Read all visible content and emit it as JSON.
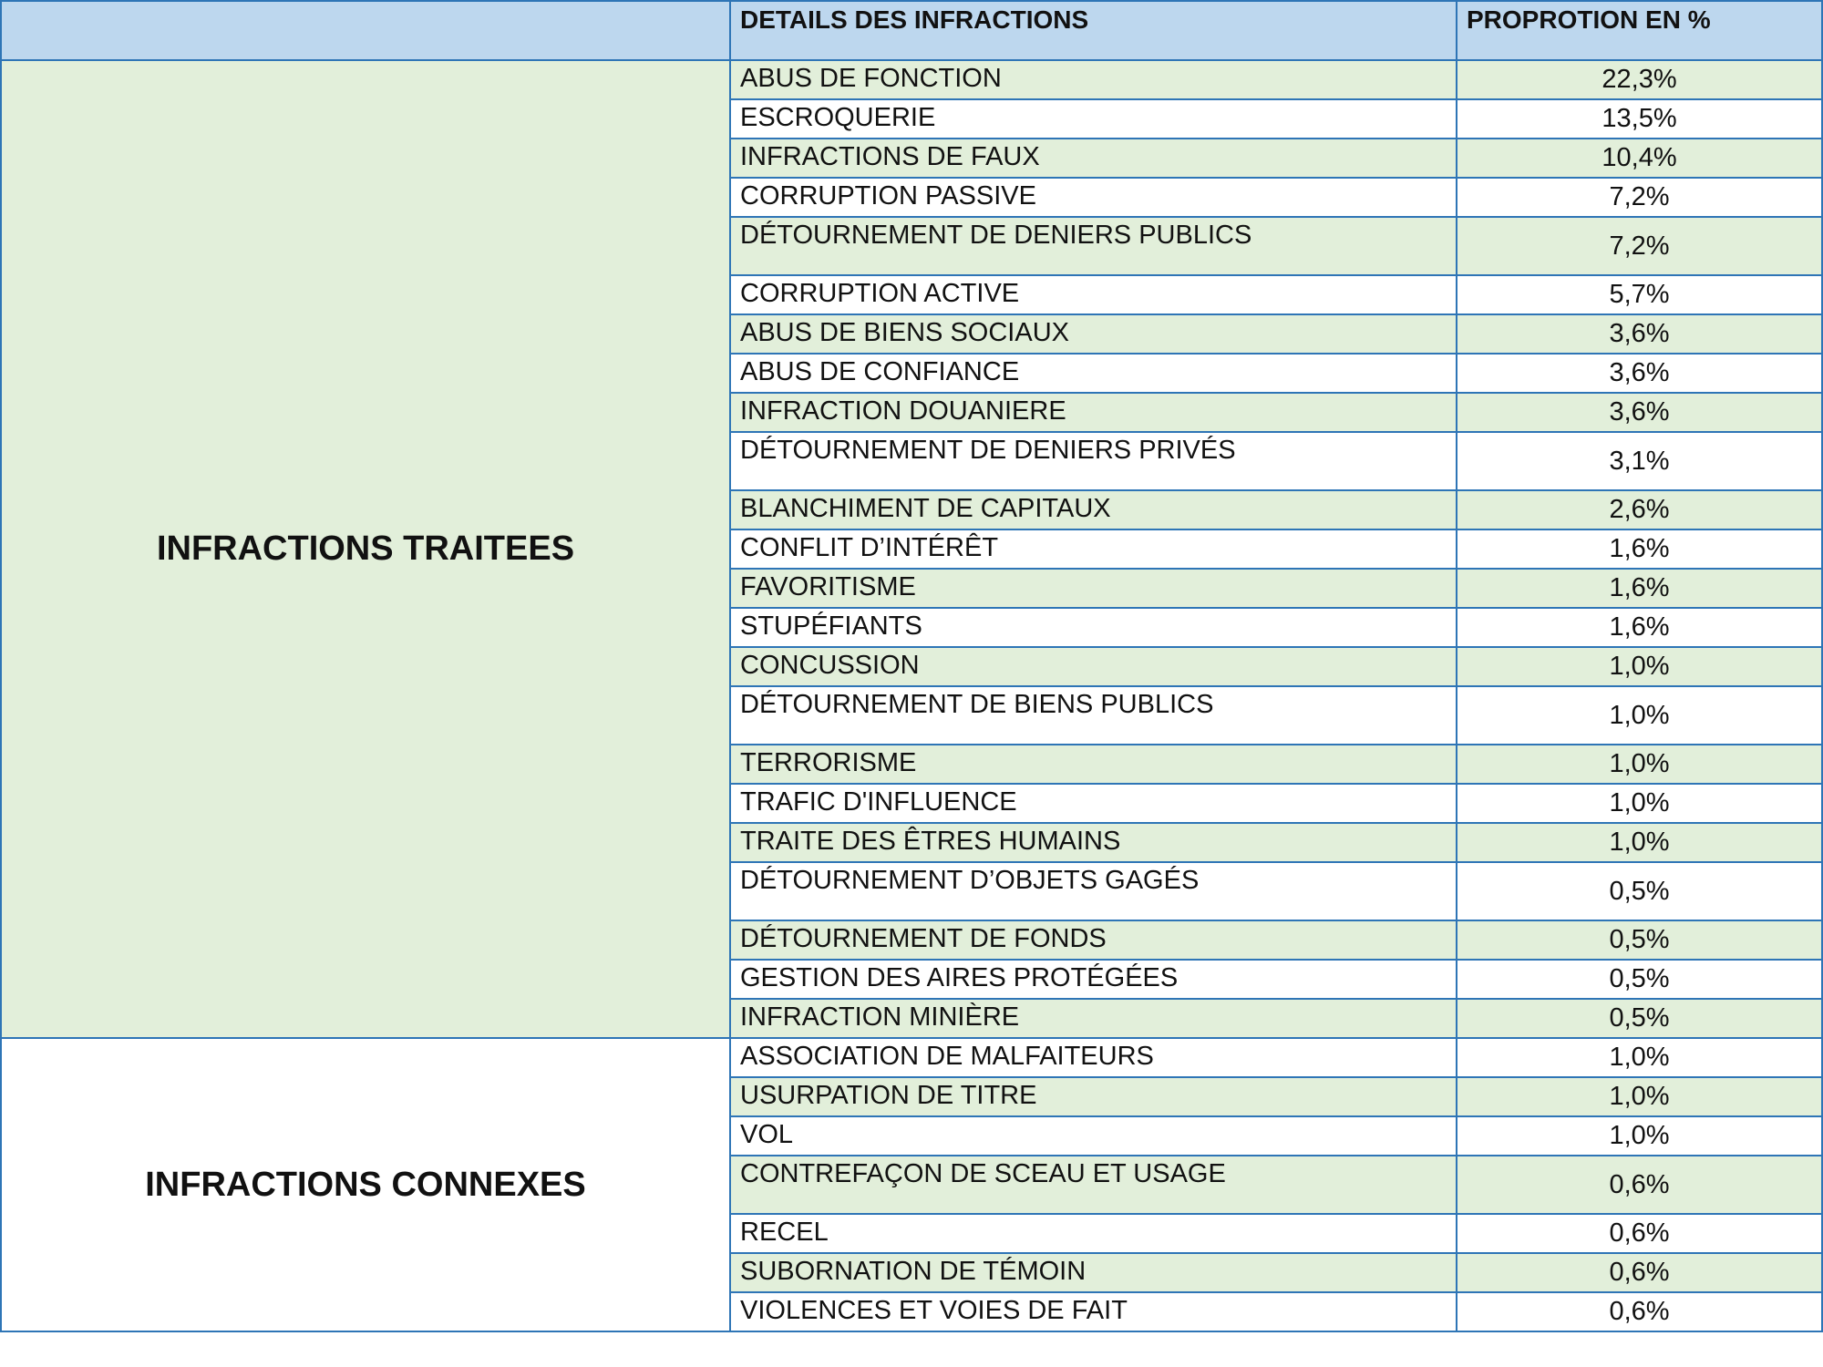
{
  "header": {
    "left": "",
    "details": "DETAILS DES INFRACTIONS",
    "proportion": "PROPROTION EN %"
  },
  "groups": [
    {
      "label": "INFRACTIONS TRAITEES",
      "rows": [
        {
          "name": "ABUS DE FONCTION",
          "value": "22,3%"
        },
        {
          "name": "ESCROQUERIE",
          "value": "13,5%"
        },
        {
          "name": "INFRACTIONS DE FAUX",
          "value": "10,4%"
        },
        {
          "name": "CORRUPTION PASSIVE",
          "value": "7,2%"
        },
        {
          "name": "DÉTOURNEMENT DE DENIERS PUBLICS",
          "value": "7,2%"
        },
        {
          "name": "CORRUPTION ACTIVE",
          "value": "5,7%"
        },
        {
          "name": "ABUS DE BIENS SOCIAUX",
          "value": "3,6%"
        },
        {
          "name": "ABUS DE CONFIANCE",
          "value": "3,6%"
        },
        {
          "name": "INFRACTION DOUANIERE",
          "value": "3,6%"
        },
        {
          "name": "DÉTOURNEMENT DE DENIERS PRIVÉS",
          "value": "3,1%"
        },
        {
          "name": "BLANCHIMENT DE CAPITAUX",
          "value": "2,6%"
        },
        {
          "name": "CONFLIT D’INTÉRÊT",
          "value": "1,6%"
        },
        {
          "name": "FAVORITISME",
          "value": "1,6%"
        },
        {
          "name": "STUPÉFIANTS",
          "value": "1,6%"
        },
        {
          "name": "CONCUSSION",
          "value": "1,0%"
        },
        {
          "name": "DÉTOURNEMENT DE BIENS PUBLICS",
          "value": "1,0%"
        },
        {
          "name": "TERRORISME",
          "value": "1,0%"
        },
        {
          "name": "TRAFIC D'INFLUENCE",
          "value": "1,0%"
        },
        {
          "name": "TRAITE DES ÊTRES HUMAINS",
          "value": "1,0%"
        },
        {
          "name": "DÉTOURNEMENT D’OBJETS GAGÉS",
          "value": "0,5%"
        },
        {
          "name": "DÉTOURNEMENT DE FONDS",
          "value": "0,5%"
        },
        {
          "name": "GESTION DES AIRES PROTÉGÉES",
          "value": "0,5%"
        },
        {
          "name": "INFRACTION MINIÈRE",
          "value": "0,5%"
        }
      ]
    },
    {
      "label": "INFRACTIONS CONNEXES",
      "rows": [
        {
          "name": "ASSOCIATION DE MALFAITEURS",
          "value": "1,0%"
        },
        {
          "name": "USURPATION DE TITRE",
          "value": "1,0%"
        },
        {
          "name": "VOL",
          "value": "1,0%"
        },
        {
          "name": "CONTREFAÇON DE SCEAU ET USAGE",
          "value": "0,6%"
        },
        {
          "name": "RECEL",
          "value": "0,6%"
        },
        {
          "name": "SUBORNATION DE TÉMOIN",
          "value": "0,6%"
        },
        {
          "name": "VIOLENCES ET VOIES DE FAIT",
          "value": "0,6%"
        }
      ]
    }
  ],
  "colors": {
    "header_bg": "#bdd7ee",
    "row_shade": "#e2efda",
    "border": "#2e75b6"
  }
}
